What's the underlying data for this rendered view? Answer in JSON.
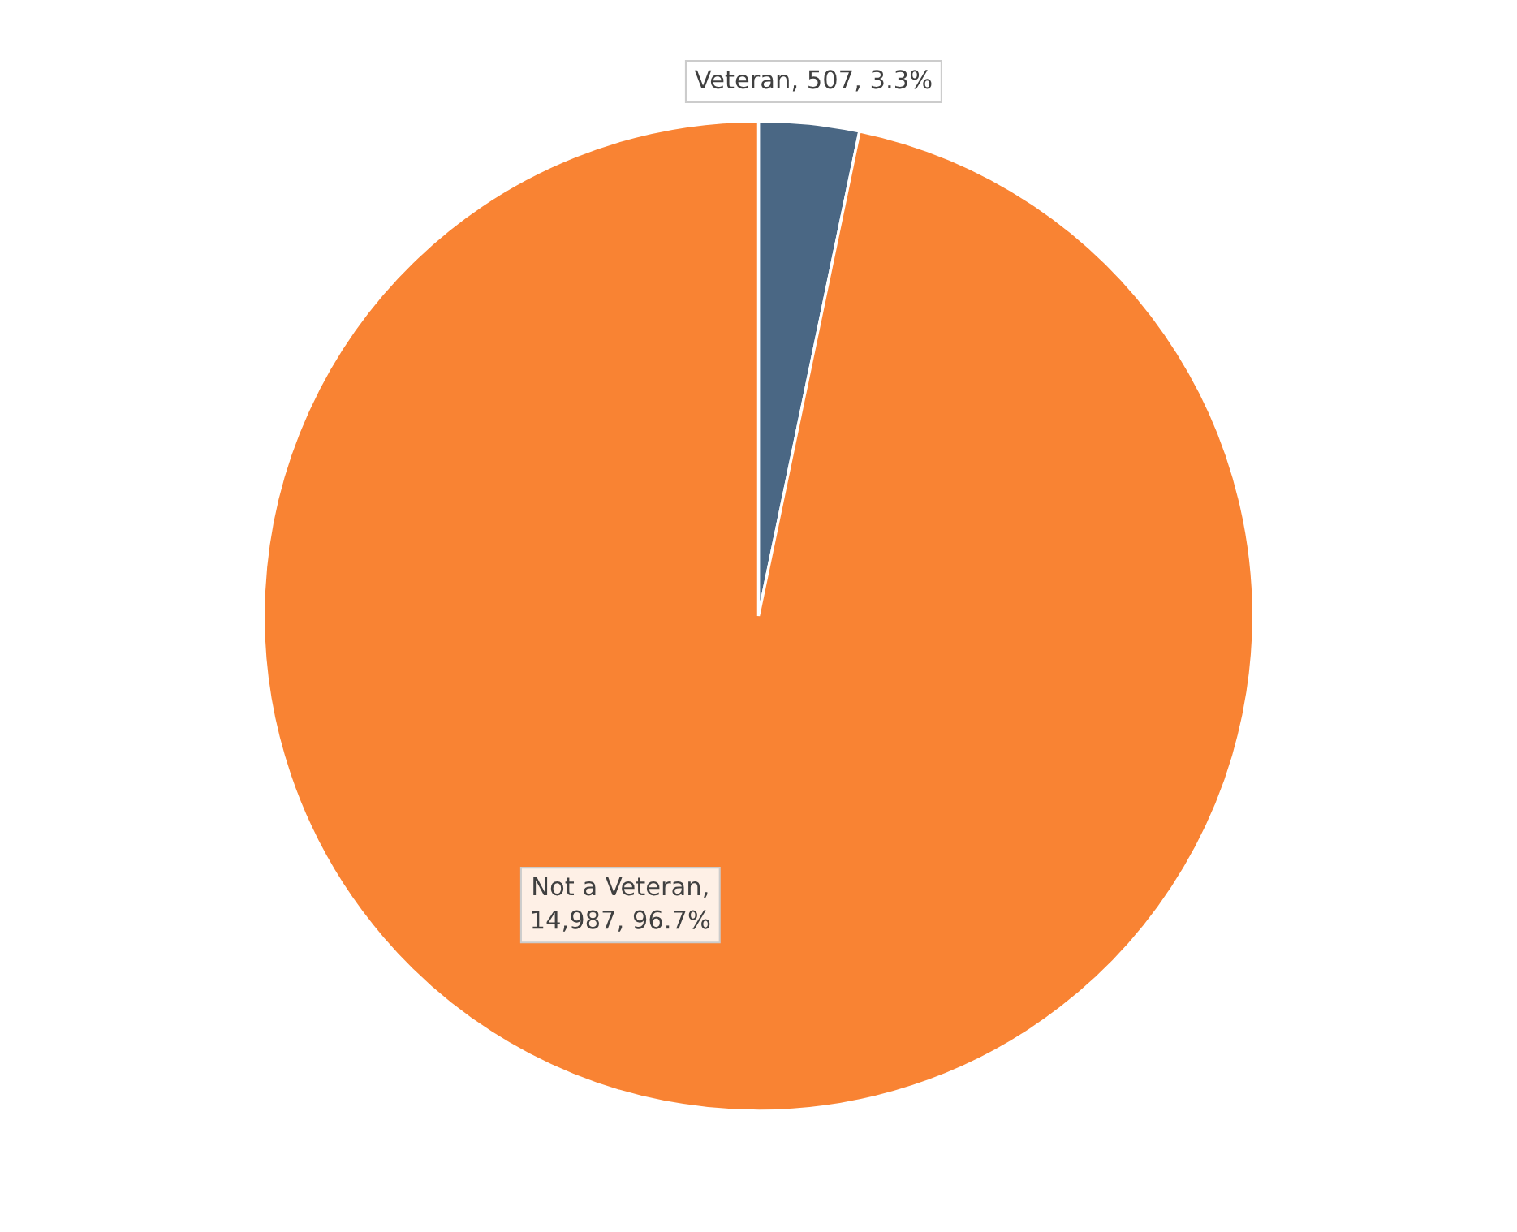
{
  "chart_data": {
    "type": "pie",
    "categories": [
      "Veteran",
      "Not a Veteran"
    ],
    "values": [
      507,
      14987
    ],
    "colors": [
      "#4a6784",
      "#f98333"
    ],
    "value_labels": [
      ", 507, 3.3%",
      ",\n14,987, 96.7%"
    ],
    "legend": false
  }
}
